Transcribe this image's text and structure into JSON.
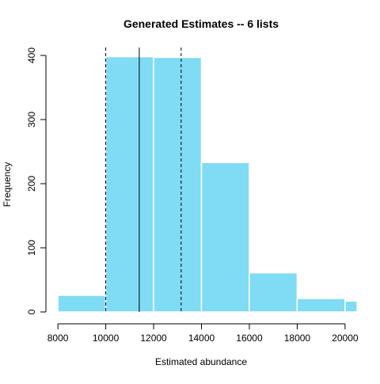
{
  "chart_data": {
    "type": "bar",
    "title": "Generated Estimates -- 6 lists",
    "xlabel": "Estimated abundance",
    "ylabel": "Frequency",
    "xlim": [
      7500,
      20500
    ],
    "ylim": [
      0,
      400
    ],
    "x_ticks": [
      8000,
      10000,
      12000,
      14000,
      16000,
      18000,
      20000
    ],
    "y_ticks": [
      0,
      100,
      200,
      300,
      400
    ],
    "bins": [
      {
        "start": 8000,
        "end": 10000,
        "value": 26
      },
      {
        "start": 10000,
        "end": 12000,
        "value": 398
      },
      {
        "start": 12000,
        "end": 14000,
        "value": 397
      },
      {
        "start": 14000,
        "end": 16000,
        "value": 233
      },
      {
        "start": 16000,
        "end": 18000,
        "value": 61
      },
      {
        "start": 18000,
        "end": 20000,
        "value": 21
      },
      {
        "start": 20000,
        "end": 20500,
        "value": 17
      }
    ],
    "reference_lines": [
      {
        "x": 10000,
        "style": "dashed"
      },
      {
        "x": 11400,
        "style": "solid"
      },
      {
        "x": 13150,
        "style": "dashed"
      }
    ],
    "grid": false,
    "legend": "none",
    "colors": {
      "bar_fill": "#80DBF4",
      "bar_border": "#FFFFFF",
      "axis": "#000000",
      "reference_line": "#000000"
    }
  }
}
